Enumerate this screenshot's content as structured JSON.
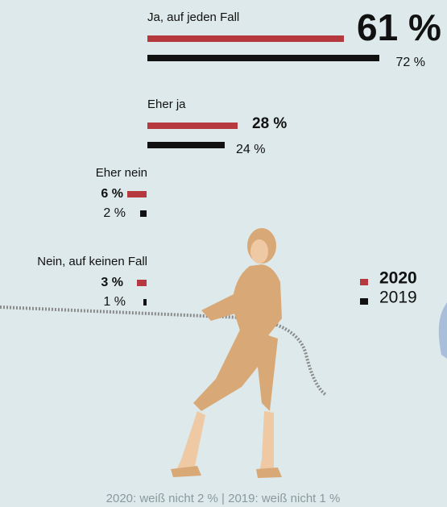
{
  "chart_data": {
    "type": "bar",
    "categories": [
      "Ja, auf jeden Fall",
      "Eher ja",
      "Eher nein",
      "Nein, auf keinen Fall"
    ],
    "series": [
      {
        "name": "2020",
        "color": "#b5393e",
        "values": [
          61,
          28,
          6,
          3
        ],
        "value_labels": [
          "61 %",
          "28 %",
          "6 %",
          "3 %"
        ]
      },
      {
        "name": "2019",
        "color": "#111111",
        "values": [
          72,
          24,
          2,
          1
        ],
        "value_labels": [
          "72 %",
          "24 %",
          "2 %",
          "1 %"
        ]
      }
    ],
    "footnote": "2020: weiß nicht 2 % | 2019: weiß nicht 1 %"
  }
}
